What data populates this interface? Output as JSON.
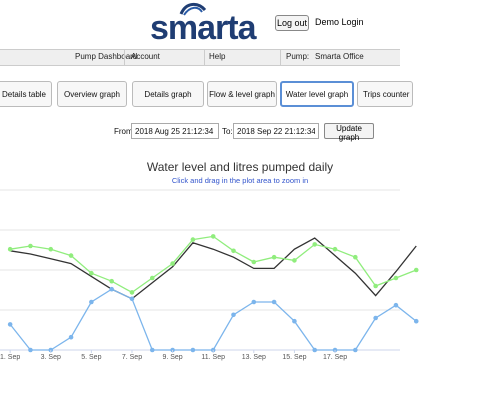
{
  "header": {
    "brand": "smarta",
    "logout_label": "Log out",
    "user": "Demo Login"
  },
  "nav": {
    "items": [
      "Pump Dashboard",
      "Account",
      "Help"
    ],
    "pump_label": "Pump:",
    "pump_value": "Smarta Office"
  },
  "tabs": [
    {
      "label": "Details table"
    },
    {
      "label": "Overview graph"
    },
    {
      "label": "Details graph"
    },
    {
      "label": "Flow & level graph"
    },
    {
      "label": "Water level graph",
      "active": true
    },
    {
      "label": "Trips counter"
    }
  ],
  "range": {
    "from_label": "From:",
    "from_value": "2018 Aug 25 21:12:34",
    "to_label": "To:",
    "to_value": "2018 Sep 22 21:12:34",
    "update_label": "Update graph"
  },
  "chart": {
    "title": "Water level and litres pumped daily",
    "subtitle": "Click and drag in the plot area to zoom in"
  },
  "chart_data": {
    "type": "line",
    "x_tick_labels": [
      "1. Sep",
      "3. Sep",
      "5. Sep",
      "7. Sep",
      "9. Sep",
      "11. Sep",
      "13. Sep",
      "15. Sep",
      "17. Sep"
    ],
    "x": [
      0,
      1,
      2,
      3,
      4,
      5,
      6,
      7,
      8,
      9,
      10,
      11,
      12,
      13,
      14,
      15,
      16,
      17,
      18,
      19,
      20
    ],
    "xlim": [
      -0.5,
      19.2
    ],
    "ylim": [
      0,
      100
    ],
    "grid": true,
    "legend": "none",
    "series": [
      {
        "color": "#333333",
        "values": [
          62,
          60,
          57,
          54,
          46,
          38,
          32,
          42,
          52,
          67,
          63,
          58,
          51,
          51,
          63,
          70,
          59,
          48,
          34,
          49,
          65
        ]
      },
      {
        "color": "#90ed7d",
        "values": [
          63,
          65,
          63,
          59,
          48,
          43,
          36,
          45,
          54,
          69,
          71,
          62,
          55,
          58,
          56,
          66,
          63,
          58,
          40,
          45,
          50
        ]
      },
      {
        "color": "#7cb5ec",
        "values": [
          16,
          0,
          0,
          8,
          30,
          38,
          32,
          0,
          0,
          0,
          0,
          22,
          30,
          30,
          18,
          0,
          0,
          0,
          20,
          28,
          18
        ]
      }
    ]
  }
}
